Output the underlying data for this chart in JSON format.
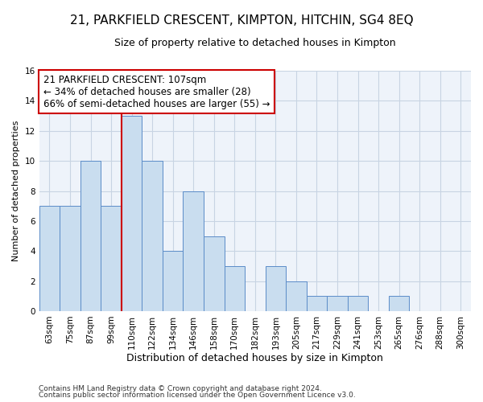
{
  "title_line1": "21, PARKFIELD CRESCENT, KIMPTON, HITCHIN, SG4 8EQ",
  "title_line2": "Size of property relative to detached houses in Kimpton",
  "xlabel": "Distribution of detached houses by size in Kimpton",
  "ylabel": "Number of detached properties",
  "footer_line1": "Contains HM Land Registry data © Crown copyright and database right 2024.",
  "footer_line2": "Contains public sector information licensed under the Open Government Licence v3.0.",
  "categories": [
    "63sqm",
    "75sqm",
    "87sqm",
    "99sqm",
    "110sqm",
    "122sqm",
    "134sqm",
    "146sqm",
    "158sqm",
    "170sqm",
    "182sqm",
    "193sqm",
    "205sqm",
    "217sqm",
    "229sqm",
    "241sqm",
    "253sqm",
    "265sqm",
    "276sqm",
    "288sqm",
    "300sqm"
  ],
  "values": [
    7,
    7,
    10,
    7,
    13,
    10,
    4,
    8,
    5,
    3,
    0,
    3,
    2,
    1,
    1,
    1,
    0,
    1,
    0,
    0,
    0
  ],
  "bar_color": "#c9ddef",
  "bar_edge_color": "#5b8cc8",
  "vline_color": "#cc0000",
  "vline_x_index": 4,
  "annotation_text": "21 PARKFIELD CRESCENT: 107sqm\n← 34% of detached houses are smaller (28)\n66% of semi-detached houses are larger (55) →",
  "annotation_box_color": "white",
  "annotation_box_edge": "#cc0000",
  "ylim": [
    0,
    16
  ],
  "yticks": [
    0,
    2,
    4,
    6,
    8,
    10,
    12,
    14,
    16
  ],
  "grid_color": "#c8d4e3",
  "background_color": "#eef3fa",
  "title_fontsize": 11,
  "subtitle_fontsize": 9,
  "ylabel_fontsize": 8,
  "xlabel_fontsize": 9,
  "tick_fontsize": 7.5,
  "annot_fontsize": 8.5,
  "footer_fontsize": 6.5
}
